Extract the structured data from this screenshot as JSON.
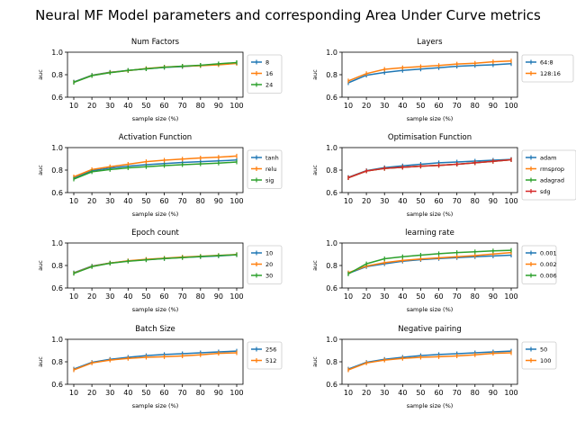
{
  "suptitle": "Neural MF Model parameters and corresponding Area Under Curve metrics",
  "colors": [
    "#1f77b4",
    "#ff7f0e",
    "#2ca02c",
    "#d62728"
  ],
  "chart_data": [
    {
      "type": "line",
      "title": "Num Factors",
      "xlabel": "sample size (%)",
      "ylabel": "auc",
      "x": [
        10,
        20,
        30,
        40,
        50,
        60,
        70,
        80,
        90,
        100
      ],
      "ylim": [
        0.6,
        1.0
      ],
      "yticks": [
        "0.6",
        "0.8",
        "1.0"
      ],
      "legend_position": "outside-right",
      "series": [
        {
          "name": "8",
          "values": [
            0.735,
            0.795,
            0.822,
            0.838,
            0.852,
            0.865,
            0.872,
            0.882,
            0.895,
            0.905
          ]
        },
        {
          "name": "16",
          "values": [
            0.733,
            0.793,
            0.82,
            0.836,
            0.855,
            0.868,
            0.875,
            0.88,
            0.888,
            0.9
          ]
        },
        {
          "name": "24",
          "values": [
            0.732,
            0.792,
            0.818,
            0.838,
            0.852,
            0.866,
            0.876,
            0.884,
            0.897,
            0.908
          ]
        }
      ]
    },
    {
      "type": "line",
      "title": "Layers",
      "xlabel": "sample size (%)",
      "ylabel": "auc",
      "x": [
        10,
        20,
        30,
        40,
        50,
        60,
        70,
        80,
        90,
        100
      ],
      "ylim": [
        0.6,
        1.0
      ],
      "yticks": [
        "0.6",
        "0.8",
        "1.0"
      ],
      "legend_position": "outside-right",
      "series": [
        {
          "name": "64:8",
          "values": [
            0.728,
            0.795,
            0.82,
            0.838,
            0.85,
            0.862,
            0.875,
            0.882,
            0.888,
            0.898
          ]
        },
        {
          "name": "128:16",
          "values": [
            0.745,
            0.81,
            0.848,
            0.862,
            0.872,
            0.882,
            0.895,
            0.902,
            0.915,
            0.922
          ]
        }
      ]
    },
    {
      "type": "line",
      "title": "Activation Function",
      "xlabel": "sample size (%)",
      "ylabel": "auc",
      "x": [
        10,
        20,
        30,
        40,
        50,
        60,
        70,
        80,
        90,
        100
      ],
      "ylim": [
        0.6,
        1.0
      ],
      "yticks": [
        "0.6",
        "0.8",
        "1.0"
      ],
      "legend_position": "outside-right",
      "series": [
        {
          "name": "tanh",
          "values": [
            0.73,
            0.795,
            0.818,
            0.835,
            0.848,
            0.858,
            0.868,
            0.875,
            0.882,
            0.89
          ]
        },
        {
          "name": "relu",
          "values": [
            0.74,
            0.805,
            0.83,
            0.852,
            0.875,
            0.888,
            0.898,
            0.908,
            0.915,
            0.925
          ]
        },
        {
          "name": "sig",
          "values": [
            0.72,
            0.785,
            0.805,
            0.82,
            0.83,
            0.84,
            0.848,
            0.855,
            0.862,
            0.872
          ]
        }
      ]
    },
    {
      "type": "line",
      "title": "Optimisation Function",
      "xlabel": "sample size (%)",
      "ylabel": "auc",
      "x": [
        10,
        20,
        30,
        40,
        50,
        60,
        70,
        80,
        90,
        100
      ],
      "ylim": [
        0.6,
        1.0
      ],
      "yticks": [
        "0.6",
        "0.8",
        "1.0"
      ],
      "legend_position": "outside-right",
      "series": [
        {
          "name": "adam",
          "values": [
            0.735,
            0.795,
            0.822,
            0.838,
            0.852,
            0.865,
            0.872,
            0.88,
            0.888,
            0.895
          ]
        },
        {
          "name": "rmsprop",
          "values": [
            0.732,
            0.792,
            0.815,
            0.825,
            0.835,
            0.842,
            0.852,
            0.865,
            0.878,
            0.892
          ]
        },
        {
          "name": "adagrad",
          "values": [
            0.732,
            0.792,
            0.815,
            0.825,
            0.835,
            0.842,
            0.852,
            0.865,
            0.878,
            0.892
          ]
        },
        {
          "name": "sdg",
          "values": [
            0.732,
            0.792,
            0.815,
            0.825,
            0.835,
            0.842,
            0.852,
            0.865,
            0.878,
            0.892
          ]
        }
      ]
    },
    {
      "type": "line",
      "title": "Epoch count",
      "xlabel": "sample size (%)",
      "ylabel": "auc",
      "x": [
        10,
        20,
        30,
        40,
        50,
        60,
        70,
        80,
        90,
        100
      ],
      "ylim": [
        0.6,
        1.0
      ],
      "yticks": [
        "0.6",
        "0.8",
        "1.0"
      ],
      "legend_position": "outside-right",
      "series": [
        {
          "name": "10",
          "values": [
            0.735,
            0.795,
            0.822,
            0.84,
            0.852,
            0.862,
            0.872,
            0.878,
            0.885,
            0.895
          ]
        },
        {
          "name": "20",
          "values": [
            0.732,
            0.792,
            0.822,
            0.842,
            0.855,
            0.865,
            0.875,
            0.882,
            0.89,
            0.898
          ]
        },
        {
          "name": "30",
          "values": [
            0.73,
            0.79,
            0.82,
            0.838,
            0.85,
            0.862,
            0.87,
            0.88,
            0.888,
            0.896
          ]
        }
      ]
    },
    {
      "type": "line",
      "title": "learning rate",
      "xlabel": "sample size (%)",
      "ylabel": "auc",
      "x": [
        10,
        20,
        30,
        40,
        50,
        60,
        70,
        80,
        90,
        100
      ],
      "ylim": [
        0.6,
        1.0
      ],
      "yticks": [
        "0.6",
        "0.8",
        "1.0"
      ],
      "legend_position": "outside-right",
      "series": [
        {
          "name": "0.001",
          "values": [
            0.73,
            0.79,
            0.815,
            0.838,
            0.852,
            0.862,
            0.87,
            0.878,
            0.885,
            0.892
          ]
        },
        {
          "name": "0.002",
          "values": [
            0.735,
            0.795,
            0.825,
            0.845,
            0.858,
            0.868,
            0.878,
            0.888,
            0.902,
            0.915
          ]
        },
        {
          "name": "0.006",
          "values": [
            0.725,
            0.815,
            0.86,
            0.878,
            0.892,
            0.905,
            0.915,
            0.922,
            0.93,
            0.935
          ]
        }
      ]
    },
    {
      "type": "line",
      "title": "Batch Size",
      "xlabel": "sample size (%)",
      "ylabel": "auc",
      "x": [
        10,
        20,
        30,
        40,
        50,
        60,
        70,
        80,
        90,
        100
      ],
      "ylim": [
        0.6,
        1.0
      ],
      "yticks": [
        "0.6",
        "0.8",
        "1.0"
      ],
      "legend_position": "outside-right",
      "series": [
        {
          "name": "256",
          "values": [
            0.735,
            0.795,
            0.822,
            0.84,
            0.855,
            0.865,
            0.872,
            0.88,
            0.888,
            0.895
          ]
        },
        {
          "name": "512",
          "values": [
            0.728,
            0.79,
            0.815,
            0.83,
            0.84,
            0.845,
            0.852,
            0.862,
            0.875,
            0.88
          ]
        }
      ]
    },
    {
      "type": "line",
      "title": "Negative pairing",
      "xlabel": "sample size (%)",
      "ylabel": "auc",
      "x": [
        10,
        20,
        30,
        40,
        50,
        60,
        70,
        80,
        90,
        100
      ],
      "ylim": [
        0.6,
        1.0
      ],
      "yticks": [
        "0.6",
        "0.8",
        "1.0"
      ],
      "legend_position": "outside-right",
      "series": [
        {
          "name": "50",
          "values": [
            0.735,
            0.795,
            0.822,
            0.84,
            0.855,
            0.865,
            0.872,
            0.88,
            0.888,
            0.895
          ]
        },
        {
          "name": "100",
          "values": [
            0.728,
            0.79,
            0.815,
            0.83,
            0.84,
            0.845,
            0.852,
            0.862,
            0.875,
            0.88
          ]
        }
      ]
    }
  ]
}
